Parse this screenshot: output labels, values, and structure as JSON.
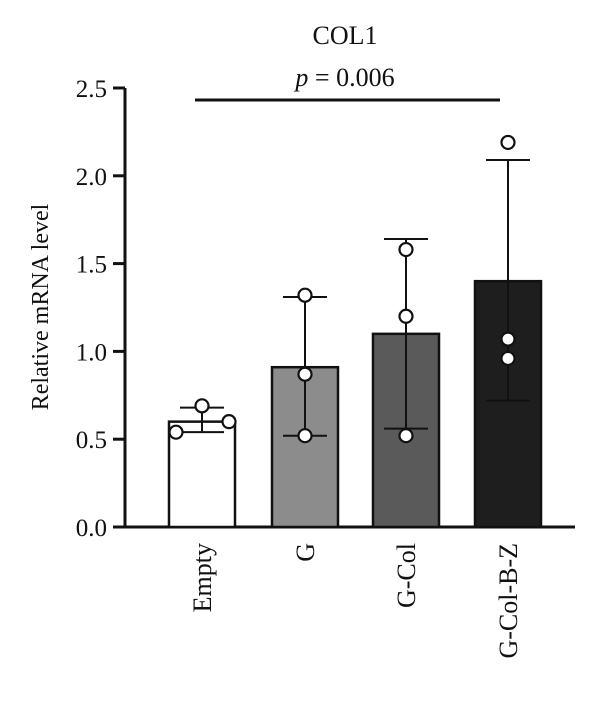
{
  "chart_data": {
    "type": "bar",
    "title": "COL1",
    "ylabel": "Relative mRNA level",
    "xlabel": "",
    "ylim": [
      0,
      2.5
    ],
    "yticks": [
      "0.0",
      "0.5",
      "1.0",
      "1.5",
      "2.0",
      "2.5"
    ],
    "categories": [
      "Empty",
      "G",
      "G-Col",
      "G-Col-B-Z"
    ],
    "values": [
      0.6,
      0.91,
      1.1,
      1.4
    ],
    "error_upper": [
      0.68,
      1.31,
      1.64,
      2.09
    ],
    "error_lower": [
      0.54,
      0.52,
      0.56,
      0.72
    ],
    "points": [
      [
        0.54,
        0.69,
        0.6
      ],
      [
        0.52,
        0.87,
        1.32
      ],
      [
        0.52,
        1.2,
        1.58
      ],
      [
        0.96,
        1.07,
        2.19
      ]
    ],
    "bar_colors": [
      "#ffffff",
      "#8c8c8c",
      "#5a5a5a",
      "#1e1e1e"
    ],
    "significance": {
      "p_label": "p",
      "p_value_text": " = 0.006",
      "from": "Empty",
      "to": "G-Col-B-Z"
    },
    "grid": false,
    "legend": "none"
  }
}
